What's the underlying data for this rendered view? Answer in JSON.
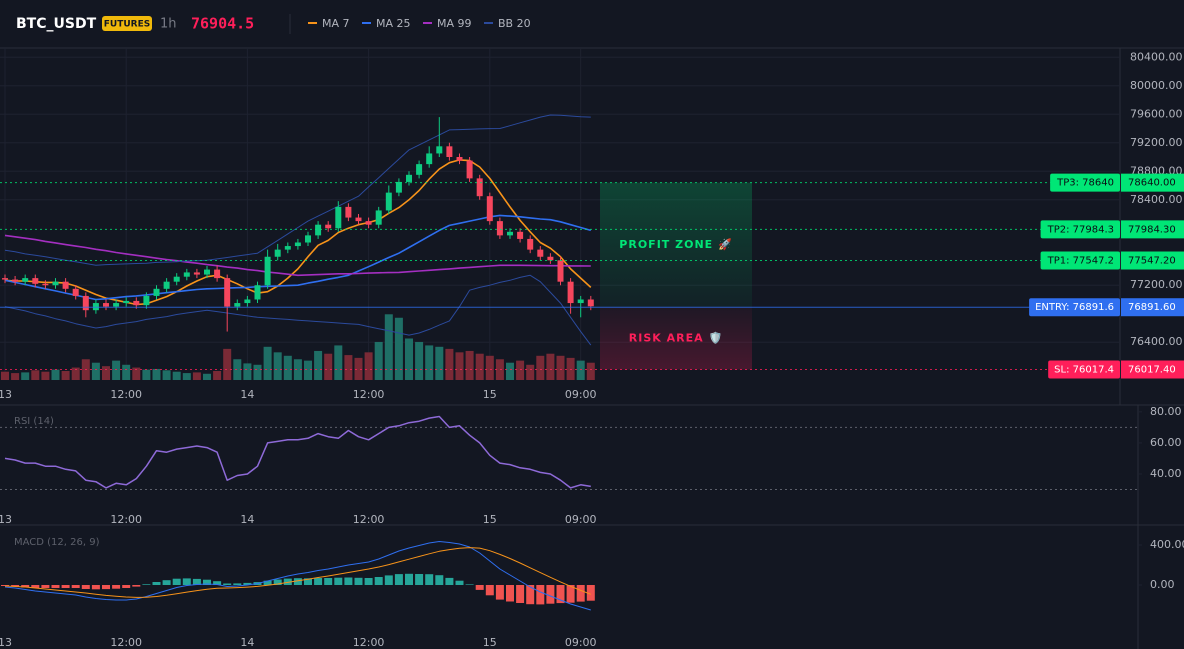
{
  "header": {
    "symbol": "BTC_USDT",
    "badge": "FUTURES",
    "interval": "1h",
    "price": "76904.5"
  },
  "chart_data": [
    {
      "type": "candlestick",
      "grid": true,
      "categories": [
        "13",
        null,
        null,
        null,
        null,
        null,
        null,
        null,
        null,
        null,
        null,
        null,
        "12:00",
        null,
        null,
        null,
        null,
        null,
        null,
        null,
        null,
        null,
        null,
        null,
        "14",
        null,
        null,
        null,
        null,
        null,
        null,
        null,
        null,
        null,
        null,
        null,
        "12:00",
        null,
        null,
        null,
        null,
        null,
        null,
        null,
        null,
        null,
        null,
        null,
        "15",
        null,
        null,
        null,
        null,
        null,
        null,
        null,
        null,
        "09:00",
        null
      ],
      "open": [
        77300,
        77280,
        77250,
        77300,
        77220,
        77200,
        77250,
        77150,
        77050,
        76850,
        76950,
        76900,
        76950,
        76980,
        76920,
        77050,
        77150,
        77250,
        77320,
        77380,
        77350,
        77420,
        77300,
        76900,
        76950,
        77000,
        77200,
        77600,
        77700,
        77750,
        77800,
        77900,
        78050,
        78000,
        78300,
        78150,
        78100,
        78050,
        78250,
        78500,
        78650,
        78750,
        78900,
        79050,
        79150,
        79000,
        78950,
        78700,
        78450,
        78100,
        77900,
        77950,
        77850,
        77700,
        77600,
        77550,
        77250,
        76950,
        77000
      ],
      "high": [
        77350,
        77330,
        77350,
        77350,
        77270,
        77300,
        77300,
        77200,
        77100,
        77000,
        77000,
        77000,
        77030,
        77030,
        77100,
        77200,
        77300,
        77370,
        77430,
        77430,
        77470,
        77480,
        77350,
        77000,
        77050,
        77250,
        77700,
        77780,
        77800,
        77850,
        77950,
        78100,
        78100,
        78380,
        78350,
        78200,
        78150,
        78300,
        78600,
        78700,
        78800,
        78950,
        79150,
        79560,
        79200,
        79050,
        79000,
        78750,
        78500,
        78150,
        78000,
        78000,
        77900,
        77750,
        77650,
        77600,
        77300,
        77050,
        77050
      ],
      "low": [
        77230,
        77200,
        77200,
        77170,
        77150,
        77150,
        77100,
        77000,
        76750,
        76800,
        76850,
        76850,
        76900,
        76870,
        76870,
        77000,
        77100,
        77200,
        77270,
        77300,
        77300,
        77250,
        76550,
        76850,
        76900,
        76950,
        77150,
        77550,
        77650,
        77700,
        77750,
        77850,
        77950,
        77950,
        78100,
        78050,
        78000,
        78000,
        78200,
        78450,
        78600,
        78700,
        78850,
        79000,
        78950,
        78900,
        78650,
        78400,
        78050,
        77850,
        77850,
        77800,
        77650,
        77550,
        77500,
        77200,
        76800,
        76750,
        76850
      ],
      "close": [
        77280,
        77250,
        77300,
        77220,
        77200,
        77250,
        77150,
        77050,
        76850,
        76950,
        76900,
        76950,
        76980,
        76920,
        77050,
        77150,
        77250,
        77320,
        77380,
        77350,
        77420,
        77300,
        76900,
        76950,
        77000,
        77200,
        77600,
        77700,
        77750,
        77800,
        77900,
        78050,
        78000,
        78300,
        78150,
        78100,
        78050,
        78250,
        78500,
        78650,
        78750,
        78900,
        79050,
        79150,
        79000,
        78950,
        78700,
        78450,
        78100,
        77900,
        77950,
        77850,
        77700,
        77600,
        77550,
        77250,
        76950,
        77000,
        76905
      ],
      "volume": [
        12,
        10,
        11,
        14,
        12,
        15,
        13,
        18,
        30,
        25,
        20,
        28,
        22,
        18,
        15,
        16,
        14,
        12,
        10,
        11,
        9,
        13,
        45,
        30,
        24,
        22,
        48,
        40,
        35,
        30,
        28,
        42,
        38,
        50,
        36,
        32,
        40,
        55,
        95,
        90,
        60,
        55,
        50,
        48,
        45,
        40,
        42,
        38,
        35,
        30,
        25,
        28,
        22,
        35,
        38,
        35,
        32,
        28,
        25
      ],
      "volume_ylim": [
        0,
        480
      ],
      "up_color": "#0ecb81",
      "down_color": "#f6465d",
      "volume_up_color": "#1f6f66",
      "volume_down_color": "#7a2a36",
      "series": [
        {
          "name": "MA 7",
          "color": "#f7931a",
          "values": [
            77270,
            77260,
            77260,
            77250,
            77240,
            77240,
            77230,
            77190,
            77130,
            77070,
            77020,
            76990,
            76960,
            76930,
            76940,
            76990,
            77040,
            77110,
            77190,
            77260,
            77320,
            77340,
            77280,
            77220,
            77150,
            77090,
            77110,
            77190,
            77300,
            77430,
            77600,
            77760,
            77830,
            77940,
            78000,
            78050,
            78080,
            78120,
            78210,
            78290,
            78400,
            78530,
            78690,
            78830,
            78920,
            78960,
            78950,
            78860,
            78700,
            78500,
            78300,
            78110,
            77950,
            77800,
            77720,
            77600,
            77430,
            77300,
            77170
          ]
        },
        {
          "name": "MA 25",
          "color": "#2f6ff0",
          "values": [
            77270,
            77240,
            77210,
            77180,
            77150,
            77120,
            77090,
            77060,
            77030,
            77000,
            77010,
            77025,
            77040,
            77050,
            77065,
            77080,
            77095,
            77110,
            77125,
            77140,
            77150,
            77155,
            77160,
            77165,
            77170,
            77180,
            77185,
            77190,
            77195,
            77200,
            77230,
            77255,
            77285,
            77310,
            77340,
            77400,
            77460,
            77525,
            77590,
            77650,
            77730,
            77810,
            77890,
            77970,
            78040,
            78070,
            78100,
            78130,
            78160,
            78180,
            78170,
            78160,
            78145,
            78130,
            78120,
            78090,
            78050,
            78010,
            77970
          ]
        },
        {
          "name": "MA 99",
          "color": "#a42fc1",
          "values": [
            77900,
            77880,
            77860,
            77840,
            77815,
            77795,
            77770,
            77750,
            77730,
            77705,
            77685,
            77660,
            77640,
            77620,
            77600,
            77580,
            77560,
            77545,
            77525,
            77510,
            77490,
            77475,
            77455,
            77440,
            77420,
            77405,
            77385,
            77370,
            77355,
            77340,
            77345,
            77350,
            77355,
            77360,
            77360,
            77365,
            77370,
            77375,
            77378,
            77380,
            77390,
            77400,
            77410,
            77420,
            77430,
            77440,
            77450,
            77460,
            77470,
            77480,
            77480,
            77480,
            77478,
            77476,
            77475,
            77474,
            77472,
            77471,
            77470
          ]
        },
        {
          "name": "BB 20",
          "color": "#2b4a9c",
          "upper": [
            77690,
            77670,
            77640,
            77620,
            77600,
            77575,
            77550,
            77530,
            77505,
            77480,
            77490,
            77495,
            77500,
            77505,
            77510,
            77520,
            77525,
            77530,
            77540,
            77545,
            77550,
            77570,
            77590,
            77610,
            77630,
            77650,
            77740,
            77830,
            77920,
            78010,
            78100,
            78170,
            78240,
            78310,
            78380,
            78450,
            78580,
            78710,
            78840,
            78970,
            79100,
            79170,
            79240,
            79310,
            79380,
            79385,
            79390,
            79395,
            79398,
            79400,
            79440,
            79480,
            79520,
            79560,
            79590,
            79585,
            79575,
            79565,
            79560
          ],
          "lower": [
            76900,
            76870,
            76840,
            76800,
            76770,
            76730,
            76700,
            76660,
            76630,
            76600,
            76620,
            76650,
            76670,
            76690,
            76720,
            76740,
            76760,
            76790,
            76810,
            76830,
            76850,
            76830,
            76810,
            76790,
            76770,
            76750,
            76740,
            76730,
            76720,
            76710,
            76700,
            76690,
            76680,
            76670,
            76660,
            76650,
            76620,
            76590,
            76560,
            76530,
            76500,
            76530,
            76580,
            76640,
            76700,
            76900,
            77130,
            77170,
            77200,
            77240,
            77270,
            77310,
            77340,
            77250,
            77100,
            76950,
            76750,
            76550,
            76360
          ]
        }
      ],
      "ylim": [
        75870,
        80530
      ],
      "yticks": [
        {
          "value": 80400,
          "label": "80400.00"
        },
        {
          "value": 80000,
          "label": "80000.00"
        },
        {
          "value": 79600,
          "label": "79600.00"
        },
        {
          "value": 79200,
          "label": "79200.00"
        },
        {
          "value": 78800,
          "label": "78800.00"
        },
        {
          "value": 78400,
          "label": "78400.00"
        },
        {
          "value": 77200,
          "label": "77200.00"
        },
        {
          "value": 76400,
          "label": "76400.00"
        }
      ],
      "levels": [
        {
          "value": 78640,
          "label": "TP3: 78640",
          "price_label": "78640.00",
          "color": "#00e676",
          "text_color": "#0b0e14"
        },
        {
          "value": 77984.3,
          "label": "TP2: 77984.3",
          "price_label": "77984.30",
          "color": "#00e676",
          "text_color": "#0b0e14"
        },
        {
          "value": 77547.2,
          "label": "TP1: 77547.2",
          "price_label": "77547.20",
          "color": "#00e676",
          "text_color": "#0b0e14"
        },
        {
          "value": 76891.6,
          "label": "ENTRY: 76891.6",
          "price_label": "76891.60",
          "color": "#2f6ff0",
          "text_color": "#ffffff"
        },
        {
          "value": 76017.4,
          "label": "SL: 76017.4",
          "price_label": "76017.40",
          "color": "#ff1f5a",
          "text_color": "#ffffff"
        }
      ],
      "zones": [
        {
          "label": "PROFIT ZONE 🚀",
          "color": "#00e676"
        },
        {
          "label": "RISK AREA 🛡️",
          "color": "#ff1f5a"
        }
      ]
    },
    {
      "type": "line",
      "title": "RSI (14)",
      "grid": false,
      "categories": [
        "13",
        null,
        null,
        null,
        null,
        null,
        null,
        null,
        null,
        null,
        null,
        null,
        "12:00",
        null,
        null,
        null,
        null,
        null,
        null,
        null,
        null,
        null,
        null,
        null,
        "14",
        null,
        null,
        null,
        null,
        null,
        null,
        null,
        null,
        null,
        null,
        null,
        "12:00",
        null,
        null,
        null,
        null,
        null,
        null,
        null,
        null,
        null,
        null,
        null,
        "15",
        null,
        null,
        null,
        null,
        null,
        null,
        null,
        null,
        "09:00",
        null
      ],
      "color": "#8e6ad8",
      "values": [
        50,
        49,
        47,
        47,
        45,
        45,
        43,
        42,
        36,
        35,
        31,
        34,
        33,
        37,
        45,
        55,
        54,
        56,
        57,
        58,
        57,
        54,
        36,
        39,
        40,
        45,
        60,
        61,
        62,
        62,
        63,
        66,
        64,
        63,
        68,
        64,
        62,
        66,
        70,
        71,
        73,
        74,
        76,
        77,
        70,
        71,
        65,
        60,
        52,
        47,
        46,
        44,
        43,
        41,
        40,
        36,
        31,
        33,
        32
      ],
      "levels": [
        70,
        30
      ],
      "ylim": [
        20,
        82.5
      ],
      "yticks": [
        {
          "value": 40,
          "label": "40.00"
        },
        {
          "value": 60,
          "label": "60.00"
        },
        {
          "value": 80,
          "label": "80.00"
        }
      ]
    },
    {
      "type": "macd",
      "title": "MACD (12, 26, 9)",
      "grid": false,
      "categories": [
        "13",
        null,
        null,
        null,
        null,
        null,
        null,
        null,
        null,
        null,
        null,
        null,
        "12:00",
        null,
        null,
        null,
        null,
        null,
        null,
        null,
        null,
        null,
        null,
        null,
        "14",
        null,
        null,
        null,
        null,
        null,
        null,
        null,
        null,
        null,
        null,
        null,
        "12:00",
        null,
        null,
        null,
        null,
        null,
        null,
        null,
        null,
        null,
        null,
        null,
        "15",
        null,
        null,
        null,
        null,
        null,
        null,
        null,
        null,
        "09:00",
        null
      ],
      "series": [
        {
          "color": "#2f6ff0",
          "values": [
            -20,
            -30,
            -45,
            -60,
            -70,
            -80,
            -90,
            -100,
            -120,
            -135,
            -145,
            -150,
            -150,
            -140,
            -115,
            -85,
            -55,
            -25,
            -5,
            5,
            10,
            5,
            -15,
            -10,
            0,
            15,
            40,
            65,
            90,
            110,
            125,
            145,
            160,
            180,
            200,
            215,
            230,
            260,
            300,
            340,
            370,
            395,
            420,
            435,
            425,
            410,
            380,
            320,
            240,
            160,
            100,
            40,
            -20,
            -70,
            -110,
            -150,
            -190,
            -220,
            -250
          ]
        },
        {
          "color": "#f7931a",
          "values": [
            -10,
            -15,
            -20,
            -30,
            -40,
            -50,
            -60,
            -70,
            -80,
            -92,
            -104,
            -113,
            -120,
            -124,
            -122,
            -115,
            -103,
            -88,
            -71,
            -56,
            -43,
            -33,
            -30,
            -26,
            -21,
            -14,
            -3,
            10,
            26,
            42,
            58,
            75,
            90,
            107,
            125,
            143,
            160,
            180,
            204,
            231,
            258,
            285,
            312,
            337,
            354,
            367,
            374,
            369,
            343,
            306,
            265,
            220,
            172,
            124,
            77,
            31,
            -13,
            -54,
            -93
          ]
        }
      ],
      "histogram": [
        -10,
        -15,
        -25,
        -30,
        -30,
        -30,
        -30,
        -30,
        -40,
        -43,
        -41,
        -37,
        -30,
        -16,
        7,
        30,
        48,
        63,
        66,
        61,
        53,
        38,
        15,
        16,
        21,
        29,
        43,
        55,
        64,
        68,
        67,
        70,
        70,
        73,
        75,
        72,
        70,
        80,
        96,
        109,
        112,
        110,
        108,
        98,
        71,
        43,
        6,
        -49,
        -103,
        -146,
        -165,
        -180,
        -192,
        -194,
        -187,
        -181,
        -177,
        -166,
        -157
      ],
      "up_color": "#26a69a",
      "down_color": "#f05350",
      "ylim": [
        -430,
        570
      ],
      "yticks": [
        {
          "value": 0,
          "label": "0.00"
        },
        {
          "value": 400,
          "label": "400.00"
        }
      ]
    }
  ]
}
